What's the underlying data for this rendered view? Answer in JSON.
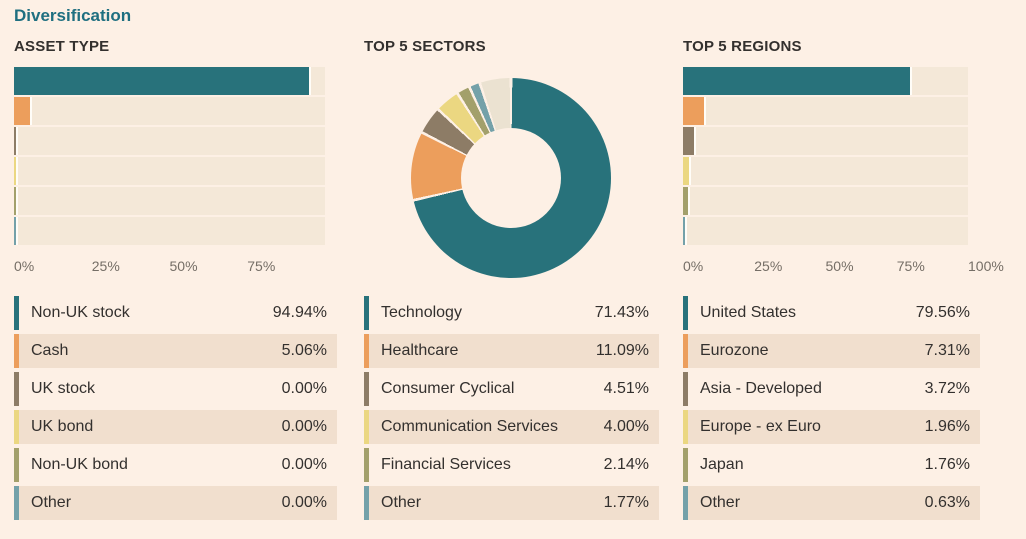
{
  "page": {
    "title": "Diversification",
    "background": "#fdf0e5",
    "title_color": "#1f6f80",
    "text_color": "#33302e"
  },
  "colors": {
    "teal": "#28727b",
    "orange": "#ec9e5c",
    "brown": "#8d7c66",
    "yellow": "#ebd781",
    "olive": "#a3a06b",
    "bluegray": "#74a1a9",
    "cream_remainder": "#ebe2d1",
    "bar_track": "#f4e8d8",
    "row_alt": "#f1dfce"
  },
  "panels": [
    {
      "title": "ASSET TYPE",
      "chart_type": "bar",
      "axis_ticks": [
        "0%",
        "25%",
        "50%",
        "75%"
      ],
      "rows": [
        {
          "label": "Non-UK stock",
          "value": 94.94,
          "display": "94.94%",
          "color": "#28727b"
        },
        {
          "label": "Cash",
          "value": 5.06,
          "display": "5.06%",
          "color": "#ec9e5c"
        },
        {
          "label": "UK stock",
          "value": 0,
          "display": "0.00%",
          "color": "#8d7c66"
        },
        {
          "label": "UK bond",
          "value": 0,
          "display": "0.00%",
          "color": "#ebd781"
        },
        {
          "label": "Non-UK bond",
          "value": 0,
          "display": "0.00%",
          "color": "#a3a06b"
        },
        {
          "label": "Other",
          "value": 0,
          "display": "0.00%",
          "color": "#74a1a9"
        }
      ]
    },
    {
      "title": "TOP 5 SECTORS",
      "chart_type": "donut",
      "rows": [
        {
          "label": "Technology",
          "value": 71.43,
          "display": "71.43%",
          "color": "#28727b"
        },
        {
          "label": "Healthcare",
          "value": 11.09,
          "display": "11.09%",
          "color": "#ec9e5c"
        },
        {
          "label": "Consumer Cyclical",
          "value": 4.51,
          "display": "4.51%",
          "color": "#8d7c66"
        },
        {
          "label": "Communication Services",
          "value": 4.0,
          "display": "4.00%",
          "color": "#ebd781"
        },
        {
          "label": "Financial Services",
          "value": 2.14,
          "display": "2.14%",
          "color": "#a3a06b"
        },
        {
          "label": "Other",
          "value": 1.77,
          "display": "1.77%",
          "color": "#74a1a9"
        }
      ],
      "donut_remainder": {
        "value": 5.06,
        "color": "#ebe2d1"
      }
    },
    {
      "title": "TOP 5 REGIONS",
      "chart_type": "bar",
      "axis_ticks": [
        "0%",
        "25%",
        "50%",
        "75%",
        "100%"
      ],
      "rows": [
        {
          "label": "United States",
          "value": 79.56,
          "display": "79.56%",
          "color": "#28727b"
        },
        {
          "label": "Eurozone",
          "value": 7.31,
          "display": "7.31%",
          "color": "#ec9e5c"
        },
        {
          "label": "Asia - Developed",
          "value": 3.72,
          "display": "3.72%",
          "color": "#8d7c66"
        },
        {
          "label": "Europe - ex Euro",
          "value": 1.96,
          "display": "1.96%",
          "color": "#ebd781"
        },
        {
          "label": "Japan",
          "value": 1.76,
          "display": "1.76%",
          "color": "#a3a06b"
        },
        {
          "label": "Other",
          "value": 0.63,
          "display": "0.63%",
          "color": "#74a1a9"
        }
      ]
    }
  ],
  "chart_data": [
    {
      "type": "bar",
      "orientation": "horizontal",
      "title": "ASSET TYPE",
      "categories": [
        "Non-UK stock",
        "Cash",
        "UK stock",
        "UK bond",
        "Non-UK bond",
        "Other"
      ],
      "values": [
        94.94,
        5.06,
        0.0,
        0.0,
        0.0,
        0.0
      ],
      "x_tick_labels": [
        "0%",
        "25%",
        "50%",
        "75%"
      ],
      "xlim": [
        0,
        100
      ],
      "grid": false,
      "legend_position": "table-below"
    },
    {
      "type": "pie",
      "subtype": "donut",
      "title": "TOP 5 SECTORS",
      "categories": [
        "Technology",
        "Healthcare",
        "Consumer Cyclical",
        "Communication Services",
        "Financial Services",
        "Other"
      ],
      "values": [
        71.43,
        11.09,
        4.51,
        4.0,
        2.14,
        1.77
      ],
      "unlabeled_remainder_value": 5.06,
      "start_angle": "top",
      "direction": "clockwise",
      "legend_position": "table-below"
    },
    {
      "type": "bar",
      "orientation": "horizontal",
      "title": "TOP 5 REGIONS",
      "categories": [
        "United States",
        "Eurozone",
        "Asia - Developed",
        "Europe - ex Euro",
        "Japan",
        "Other"
      ],
      "values": [
        79.56,
        7.31,
        3.72,
        1.96,
        1.76,
        0.63
      ],
      "x_tick_labels": [
        "0%",
        "25%",
        "50%",
        "75%",
        "100%"
      ],
      "xlim": [
        0,
        100
      ],
      "grid": false,
      "legend_position": "table-below"
    }
  ]
}
